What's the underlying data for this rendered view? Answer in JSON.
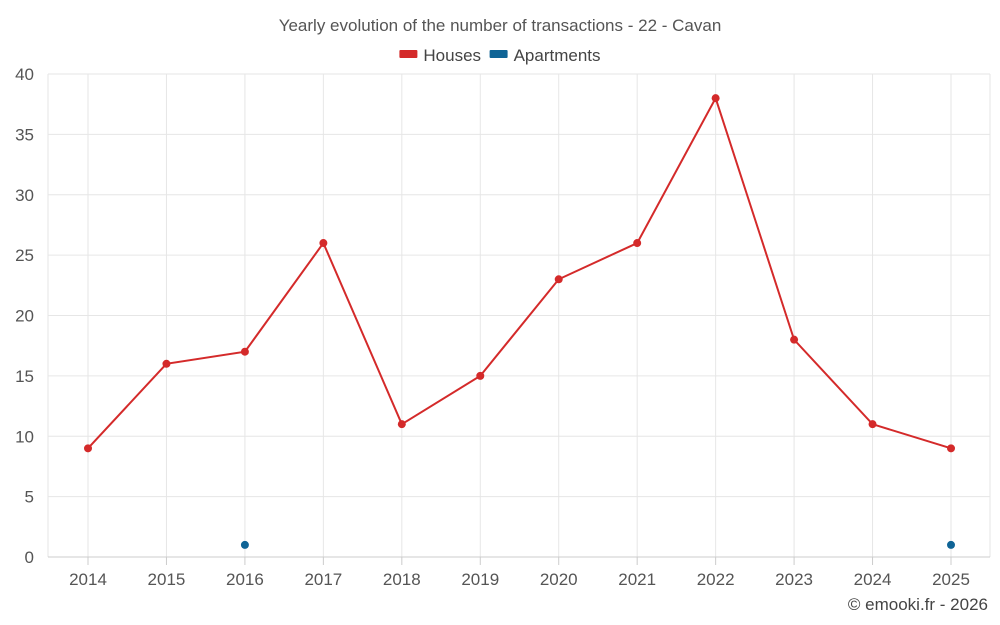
{
  "chart_data": {
    "type": "line",
    "title": "Yearly evolution of the number of transactions - 22 - Cavan",
    "categories": [
      "2014",
      "2015",
      "2016",
      "2017",
      "2018",
      "2019",
      "2020",
      "2021",
      "2022",
      "2023",
      "2024",
      "2025"
    ],
    "series": [
      {
        "name": "Houses",
        "color": "#d42a2a",
        "values": [
          9,
          16,
          17,
          26,
          11,
          15,
          23,
          26,
          38,
          18,
          11,
          9
        ]
      },
      {
        "name": "Apartments",
        "color": "#0f6496",
        "values": [
          null,
          null,
          1,
          null,
          null,
          null,
          null,
          null,
          null,
          null,
          null,
          1
        ]
      }
    ],
    "ylim": [
      0,
      40
    ],
    "yticks": [
      "0",
      "5",
      "10",
      "15",
      "20",
      "25",
      "30",
      "35",
      "40"
    ],
    "legend_position": "top-center",
    "grid": true
  },
  "credit": "© emooki.fr - 2026"
}
